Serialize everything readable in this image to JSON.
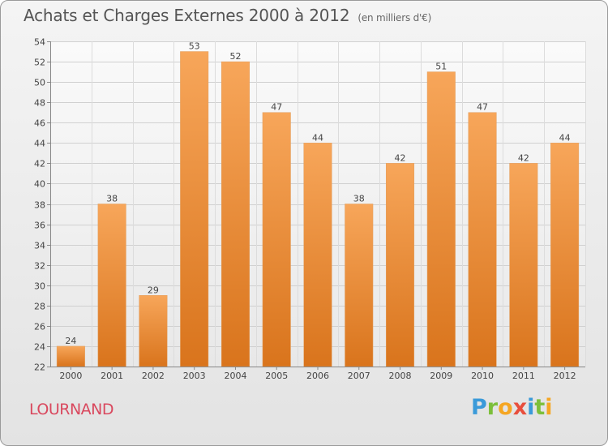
{
  "header": {
    "title": "Achats et Charges Externes 2000 à 2012",
    "subtitle": "(en milliers d'€)"
  },
  "footer": {
    "commune": "LOURNAND",
    "brand_letters": [
      {
        "char": "P",
        "color": "#3a9ad9"
      },
      {
        "char": "r",
        "color": "#7cbf3a"
      },
      {
        "char": "o",
        "color": "#f5a623"
      },
      {
        "char": "x",
        "color": "#e84e3c"
      },
      {
        "char": "i",
        "color": "#3a9ad9"
      },
      {
        "char": "t",
        "color": "#7cbf3a"
      },
      {
        "char": "i",
        "color": "#f5a623"
      }
    ]
  },
  "chart_data": {
    "type": "bar",
    "categories": [
      "2000",
      "2001",
      "2002",
      "2003",
      "2004",
      "2005",
      "2006",
      "2007",
      "2008",
      "2009",
      "2010",
      "2011",
      "2012"
    ],
    "values": [
      24,
      38,
      29,
      53,
      52,
      47,
      44,
      38,
      42,
      51,
      47,
      42,
      44
    ],
    "ylim": [
      22,
      54
    ],
    "yticks": [
      22,
      24,
      26,
      28,
      30,
      32,
      34,
      36,
      38,
      40,
      42,
      44,
      46,
      48,
      50,
      52,
      54
    ],
    "grid": true,
    "bar_color_top": "#f7a65a",
    "bar_color_bottom": "#d9741c"
  }
}
